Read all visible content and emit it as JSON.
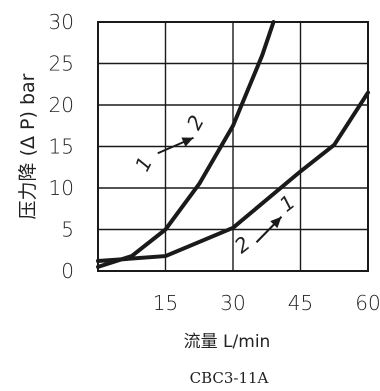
{
  "chart_data": {
    "type": "line",
    "caption": "CBC3-11A",
    "xlabel": "流量 L/min",
    "ylabel": "压力降 (Δ P) bar",
    "xlim": [
      0,
      60
    ],
    "ylim": [
      0,
      30
    ],
    "xticks": [
      15,
      30,
      45,
      60
    ],
    "yticks": [
      0,
      5,
      10,
      15,
      20,
      25,
      30
    ],
    "grid": true,
    "series": [
      {
        "name": "1→2",
        "x": [
          0,
          7.5,
          15,
          22.5,
          30,
          36.5,
          39
        ],
        "y": [
          0.5,
          1.8,
          5,
          10.5,
          17.5,
          26,
          30
        ]
      },
      {
        "name": "2→1",
        "x": [
          0,
          15,
          30,
          45,
          52.5,
          60
        ],
        "y": [
          1.2,
          1.8,
          5.2,
          12,
          15.2,
          21.5
        ]
      }
    ],
    "annotations": [
      {
        "label": "1",
        "x": 11.5,
        "y": 12.5,
        "angle": -62
      },
      {
        "label": "2",
        "x": 23,
        "y": 17.5,
        "angle": -62
      },
      {
        "label": "2",
        "x": 33,
        "y": 2.5,
        "angle": -38
      },
      {
        "label": "1",
        "x": 43,
        "y": 7.5,
        "angle": -38
      }
    ]
  }
}
